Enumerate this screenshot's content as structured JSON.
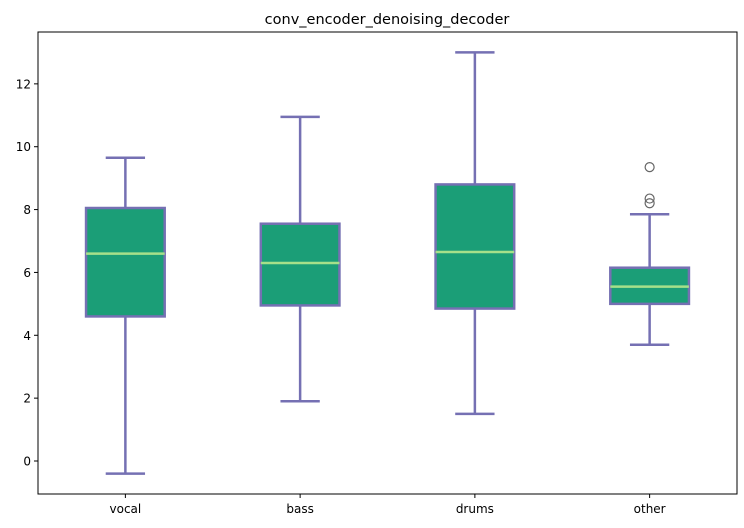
{
  "chart_data": {
    "type": "box",
    "title": "conv_encoder_denoising_decoder",
    "xlabel": "",
    "ylabel": "",
    "ylim": [
      -1.05,
      13.65
    ],
    "yticks": [
      0,
      2,
      4,
      6,
      8,
      10,
      12
    ],
    "grid": false,
    "categories": [
      "vocal",
      "bass",
      "drums",
      "other"
    ],
    "boxes": [
      {
        "category": "vocal",
        "whisker_low": -0.4,
        "q1": 4.6,
        "median": 6.6,
        "q3": 8.05,
        "whisker_high": 9.65,
        "outliers": []
      },
      {
        "category": "bass",
        "whisker_low": 1.9,
        "q1": 4.95,
        "median": 6.3,
        "q3": 7.55,
        "whisker_high": 10.95,
        "outliers": []
      },
      {
        "category": "drums",
        "whisker_low": 1.5,
        "q1": 4.85,
        "median": 6.65,
        "q3": 8.8,
        "whisker_high": 13.0,
        "outliers": []
      },
      {
        "category": "other",
        "whisker_low": 3.7,
        "q1": 5.0,
        "median": 5.55,
        "q3": 6.15,
        "whisker_high": 7.85,
        "outliers": [
          8.2,
          8.35,
          9.35
        ]
      }
    ],
    "colors": {
      "box_fill": "#1b9e77",
      "box_edge": "#7570b3",
      "whisker": "#7570b3",
      "median": "#a6e08a",
      "outlier_edge": "#666666",
      "axis": "#000000"
    }
  }
}
